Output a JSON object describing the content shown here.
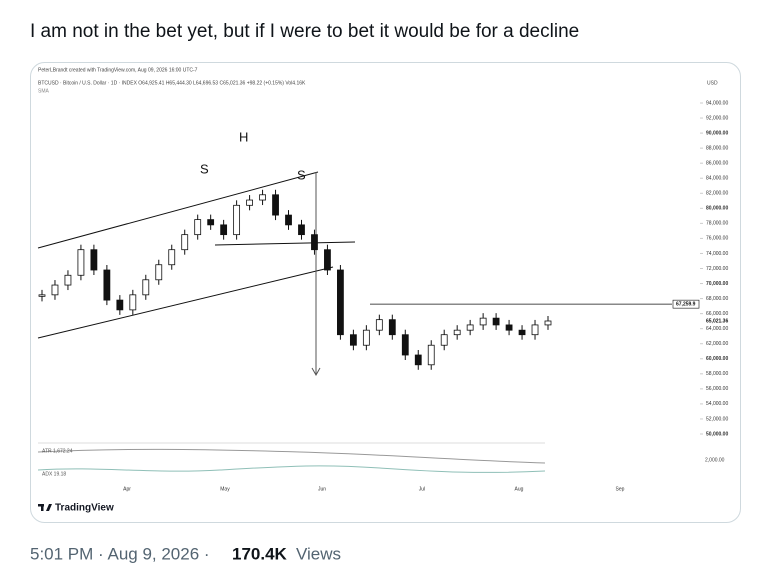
{
  "tweet": {
    "text": "I am not in the bet yet, but if I were to bet it would be for a decline",
    "meta": "5:01 PM · Aug 9, 2026 ·",
    "views_count": "170.4K",
    "views_label": "Views"
  },
  "chart_data": {
    "type": "candlestick",
    "header": [
      "PeterLBrandt created with TradingView.com, Aug 09, 2026 16:00 UTC-7",
      "BTCUSD · Bitcoin / U.S. Dollar · 1D · INDEX  O64,925.41 H65,444.30 L64,696.53 C65,021.36 +98.22 (+0.15%) Vol4.16K",
      "SMA"
    ],
    "currency": "USD",
    "annotations": [
      "S",
      "H",
      "S"
    ],
    "months": [
      "Apr",
      "May",
      "Jun",
      "Jul",
      "Aug",
      "Sep"
    ],
    "values": [
      68500,
      69800,
      71100,
      74500,
      71800,
      67800,
      66500,
      68500,
      70500,
      72500,
      74500,
      76500,
      78500,
      77800,
      76500,
      80400,
      81100,
      81800,
      79100,
      77800,
      76500,
      74500,
      71800,
      63200,
      61800,
      63800,
      65200,
      63200,
      60500,
      59200,
      61800,
      63200,
      63800,
      64500,
      65400,
      64500,
      63800,
      63200,
      64500,
      65021.36
    ],
    "ylim": [
      50000,
      94000
    ],
    "yticks": [
      {
        "value": 94000,
        "label": "94,000.00"
      },
      {
        "value": 92000,
        "label": "92,000.00"
      },
      {
        "value": 90000,
        "label": "90,000.00"
      },
      {
        "value": 88000,
        "label": "88,000.00"
      },
      {
        "value": 86000,
        "label": "86,000.00"
      },
      {
        "value": 84000,
        "label": "84,000.00"
      },
      {
        "value": 82000,
        "label": "82,000.00"
      },
      {
        "value": 80000,
        "label": "80,000.00"
      },
      {
        "value": 78000,
        "label": "78,000.00"
      },
      {
        "value": 76000,
        "label": "76,000.00"
      },
      {
        "value": 74000,
        "label": "74,000.00"
      },
      {
        "value": 72000,
        "label": "72,000.00"
      },
      {
        "value": 70000,
        "label": "70,000.00"
      },
      {
        "value": 68000,
        "label": "68,000.00"
      },
      {
        "value": 66000,
        "label": "66,000.00"
      },
      {
        "value": 64000,
        "label": "64,000.00"
      },
      {
        "value": 62000,
        "label": "62,000.00"
      },
      {
        "value": 60000,
        "label": "60,000.00"
      },
      {
        "value": 58000,
        "label": "58,000.00"
      },
      {
        "value": 56000,
        "label": "56,000.00"
      },
      {
        "value": 54000,
        "label": "54,000.00"
      },
      {
        "value": 52000,
        "label": "52,000.00"
      },
      {
        "value": 50000,
        "label": "50,000.00"
      }
    ],
    "price_lines": [
      {
        "value": 67259.9,
        "label": "67,259.9"
      },
      {
        "value": 65021.36,
        "label": "65,021.36"
      }
    ],
    "indicators": [
      "ATR 1,672.24",
      "ADX 19.18",
      "2,000.00"
    ],
    "brand": "TradingView"
  }
}
